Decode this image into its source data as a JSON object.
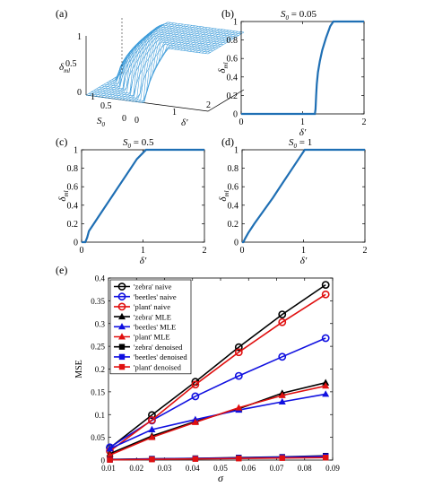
{
  "colors": {
    "curve": "#1f6fb4",
    "surface": "#3a9ad9",
    "zebra": "#000000",
    "beetles": "#1010e0",
    "plant": "#e01010"
  },
  "panels": {
    "a": {
      "label": "(a)",
      "zlabel": "δ",
      "zlabel_sub": "ml",
      "xlabel": "S",
      "xlabel_sub": "0",
      "ylabel": "δ'",
      "z_ticks": [
        "0",
        "0.5",
        "1"
      ],
      "x_ticks": [
        "1",
        "0.5",
        "0"
      ],
      "y_ticks": [
        "0",
        "1",
        "2"
      ]
    },
    "b": {
      "label": "(b)",
      "title": "S",
      "title_sub": "0",
      "title_val": " = 0.05"
    },
    "c": {
      "label": "(c)",
      "title": "S",
      "title_sub": "0",
      "title_val": " = 0.5"
    },
    "d": {
      "label": "(d)",
      "title": "S",
      "title_sub": "0",
      "title_val": " = 1"
    },
    "e": {
      "label": "(e)"
    }
  },
  "chart_data": [
    {
      "type": "line",
      "panel": "b",
      "ylabel": "δ",
      "ylabel_sub": "ml",
      "xlabel": "δ'",
      "xlim": [
        0,
        2
      ],
      "ylim": [
        0,
        1
      ],
      "x_ticks": [
        "0",
        "1",
        "2"
      ],
      "y_ticks": [
        "0",
        "0.2",
        "0.4",
        "0.6",
        "0.8",
        "1"
      ],
      "series": [
        {
          "x": [
            0,
            1.2,
            1.21,
            1.22,
            1.23,
            1.25,
            1.28,
            1.32,
            1.38,
            1.45,
            1.5,
            1.75,
            2
          ],
          "y": [
            0,
            0,
            0.05,
            0.2,
            0.32,
            0.45,
            0.57,
            0.69,
            0.82,
            0.95,
            1,
            1,
            1
          ]
        }
      ]
    },
    {
      "type": "line",
      "panel": "c",
      "ylabel": "δ",
      "ylabel_sub": "ml",
      "xlabel": "δ'",
      "xlim": [
        0,
        2
      ],
      "ylim": [
        0,
        1
      ],
      "x_ticks": [
        "0",
        "1",
        "2"
      ],
      "y_ticks": [
        "0",
        "0.2",
        "0.4",
        "0.6",
        "0.8",
        "1"
      ],
      "series": [
        {
          "x": [
            0,
            0.06,
            0.09,
            0.12,
            0.18,
            0.3,
            0.45,
            0.6,
            0.75,
            0.9,
            1.05,
            1.5,
            2
          ],
          "y": [
            0,
            0,
            0.05,
            0.12,
            0.18,
            0.3,
            0.45,
            0.6,
            0.75,
            0.9,
            1,
            1,
            1
          ]
        }
      ]
    },
    {
      "type": "line",
      "panel": "d",
      "ylabel": "δ",
      "ylabel_sub": "ml",
      "xlabel": "δ'",
      "xlim": [
        0,
        2
      ],
      "ylim": [
        0,
        1
      ],
      "x_ticks": [
        "0",
        "1",
        "2"
      ],
      "y_ticks": [
        "0",
        "0.2",
        "0.4",
        "0.6",
        "0.8",
        "1"
      ],
      "series": [
        {
          "x": [
            0,
            0.02,
            0.05,
            0.1,
            0.2,
            0.35,
            0.5,
            0.65,
            0.8,
            0.95,
            1.02,
            1.5,
            2
          ],
          "y": [
            0,
            0,
            0.04,
            0.1,
            0.2,
            0.34,
            0.48,
            0.63,
            0.78,
            0.93,
            1,
            1,
            1
          ]
        }
      ]
    },
    {
      "type": "line",
      "panel": "e",
      "ylabel": "MSE",
      "xlabel": "σ",
      "xlim": [
        0.01,
        0.09
      ],
      "ylim": [
        0,
        0.4
      ],
      "x_ticks": [
        "0.01",
        "0.02",
        "0.03",
        "0.04",
        "0.05",
        "0.06",
        "0.07",
        "0.08",
        "0.09"
      ],
      "y_ticks": [
        "0",
        "0.05",
        "0.1",
        "0.15",
        "0.2",
        "0.25",
        "0.3",
        "0.35",
        "0.4"
      ],
      "legend": "top-left",
      "x": [
        0.0105,
        0.0255,
        0.041,
        0.0565,
        0.072,
        0.0875
      ],
      "series": [
        {
          "name": "'zebra' naive",
          "color": "#000000",
          "marker": "circle",
          "values": [
            0.027,
            0.099,
            0.172,
            0.248,
            0.32,
            0.385
          ]
        },
        {
          "name": "'beetles' naive",
          "color": "#1010e0",
          "marker": "circle",
          "values": [
            0.028,
            0.087,
            0.14,
            0.185,
            0.227,
            0.268
          ]
        },
        {
          "name": "'plant' naive",
          "color": "#e01010",
          "marker": "circle",
          "values": [
            0.02,
            0.088,
            0.166,
            0.237,
            0.303,
            0.364
          ]
        },
        {
          "name": "'zebra' MLE",
          "color": "#000000",
          "marker": "triangle",
          "values": [
            0.014,
            0.053,
            0.085,
            0.113,
            0.147,
            0.17
          ]
        },
        {
          "name": "'beetles' MLE",
          "color": "#1010e0",
          "marker": "triangle",
          "values": [
            0.025,
            0.067,
            0.089,
            0.11,
            0.128,
            0.145
          ]
        },
        {
          "name": "'plant' MLE",
          "color": "#e01010",
          "marker": "triangle",
          "values": [
            0.011,
            0.05,
            0.083,
            0.115,
            0.142,
            0.163
          ]
        },
        {
          "name": "'zebra' denoised",
          "color": "#000000",
          "marker": "square",
          "values": [
            0.0015,
            0.003,
            0.004,
            0.0055,
            0.007,
            0.0095
          ]
        },
        {
          "name": "'beetles' denoised",
          "color": "#1010e0",
          "marker": "square",
          "values": [
            0.001,
            0.0025,
            0.0035,
            0.005,
            0.0065,
            0.0085
          ]
        },
        {
          "name": "'plant' denoised",
          "color": "#e01010",
          "marker": "square",
          "values": [
            0.0005,
            0.0015,
            0.0025,
            0.0035,
            0.0045,
            0.0055
          ]
        }
      ]
    }
  ]
}
